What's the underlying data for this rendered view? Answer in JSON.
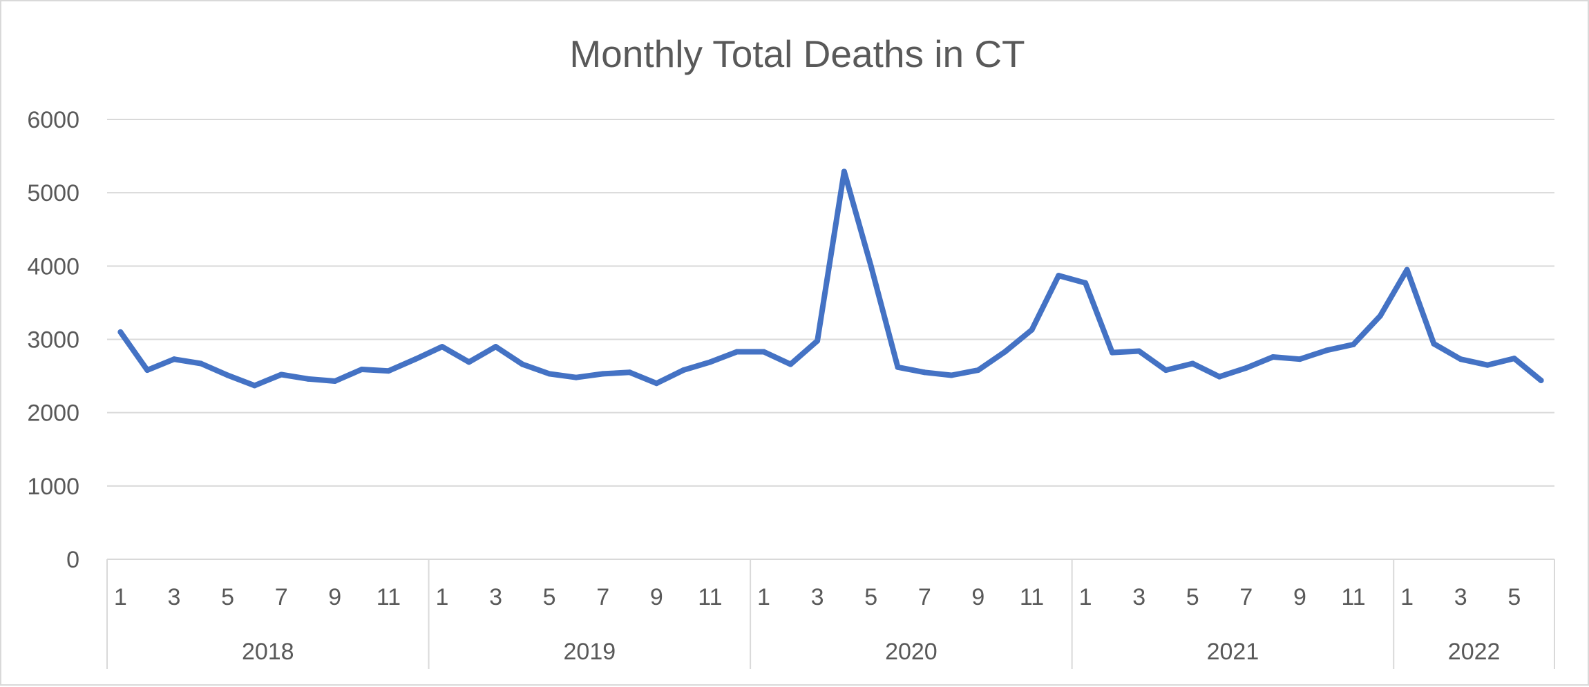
{
  "chart_data": {
    "type": "line",
    "title": "Monthly Total Deaths in CT",
    "ylim": [
      0,
      6000
    ],
    "yticks": [
      0,
      1000,
      2000,
      3000,
      4000,
      5000,
      6000
    ],
    "grid": true,
    "legend": "none",
    "line_color": "#4472c4",
    "years": [
      {
        "label": "2018",
        "months": 12
      },
      {
        "label": "2019",
        "months": 12
      },
      {
        "label": "2020",
        "months": 12
      },
      {
        "label": "2021",
        "months": 12
      },
      {
        "label": "2022",
        "months": 6
      }
    ],
    "month_tick_labels": [
      "1",
      "3",
      "5",
      "7",
      "9",
      "11"
    ],
    "series": [
      {
        "values": [
          3100,
          2580,
          2730,
          2670,
          2510,
          2370,
          2520,
          2460,
          2430,
          2590,
          2570,
          2730,
          2900,
          2690,
          2900,
          2660,
          2530,
          2480,
          2530,
          2550,
          2400,
          2580,
          2690,
          2830,
          2830,
          2660,
          2980,
          5290,
          4000,
          2620,
          2550,
          2510,
          2580,
          2830,
          3130,
          3870,
          3770,
          2820,
          2840,
          2580,
          2670,
          2490,
          2610,
          2760,
          2730,
          2850,
          2930,
          3320,
          3950,
          2940,
          2730,
          2650,
          2740,
          2440
        ]
      }
    ]
  }
}
